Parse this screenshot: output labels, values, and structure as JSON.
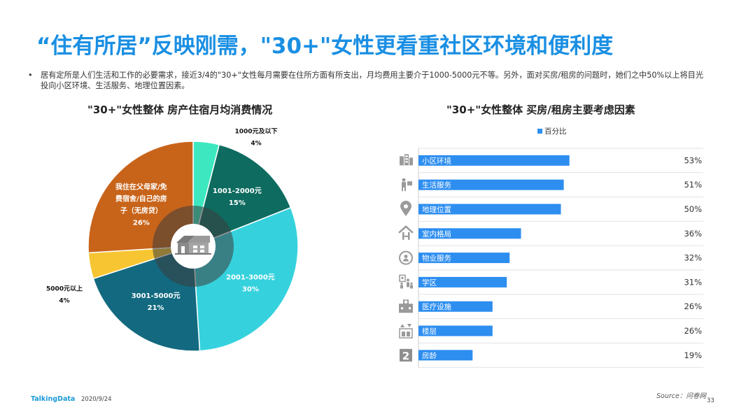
{
  "title": "“住有所居”反映刚需，\"30+\"女性更看重社区环境和便利度",
  "bullet": "居有定所是人们生活和工作的必要需求，接近3/4的\"30+\"女性每月需要在住所方面有所支出，月均费用主要介于1000-5000元不等。另外，面对买房/租房的问题时，她们之中50%以上将目光投向小区环境、生活服务、地理位置因素。",
  "footer": {
    "logo": "TalkingData",
    "date": "2020/9/24",
    "source": "Source：问卷网",
    "page": "33"
  },
  "colors": {
    "title": "#1a8fe3",
    "bar": "#2d8ef0"
  },
  "chart_data": [
    {
      "type": "pie",
      "title": "\"30+\"女性整体  房产住宿月均消费情况",
      "center_icon": "house-icon",
      "slices": [
        {
          "label": "1000元及以下",
          "value": 4,
          "value_label": "4%",
          "color": "#3de8c0"
        },
        {
          "label": "1001-2000元",
          "value": 15,
          "value_label": "15%",
          "color": "#0e6b60"
        },
        {
          "label": "2001-3000元",
          "value": 30,
          "value_label": "30%",
          "color": "#35d2dd"
        },
        {
          "label": "3001-5000元",
          "value": 21,
          "value_label": "21%",
          "color": "#136a80"
        },
        {
          "label": "5000元以上",
          "value": 4,
          "value_label": "4%",
          "color": "#f7c531"
        },
        {
          "label": "我住在父母家/免费宿舍/自己的房子（无房贷）",
          "label_lines": [
            "我住在父母家/免",
            "费宿舍/自己的房",
            "子（无房贷）"
          ],
          "value": 26,
          "value_label": "26%",
          "color": "#c8641a"
        }
      ]
    },
    {
      "type": "bar",
      "orientation": "horizontal",
      "title": "\"30+\"女性整体  买房/租房主要考虑因素",
      "legend": "百分比",
      "legend_position": "top",
      "xlim": [
        0,
        100
      ],
      "categories": [
        "小区环境",
        "生活服务",
        "地理位置",
        "室内格局",
        "物业服务",
        "学区",
        "医疗设施",
        "楼层",
        "房龄"
      ],
      "icons": [
        "building-icon",
        "delivery-person-icon",
        "location-pin-icon",
        "house-h-icon",
        "service-gear-icon",
        "school-family-icon",
        "hospital-icon",
        "elevator-icon",
        "number-2-icon"
      ],
      "values": [
        53,
        51,
        50,
        36,
        32,
        31,
        26,
        26,
        19
      ],
      "value_labels": [
        "53%",
        "51%",
        "50%",
        "36%",
        "32%",
        "31%",
        "26%",
        "26%",
        "19%"
      ]
    }
  ]
}
